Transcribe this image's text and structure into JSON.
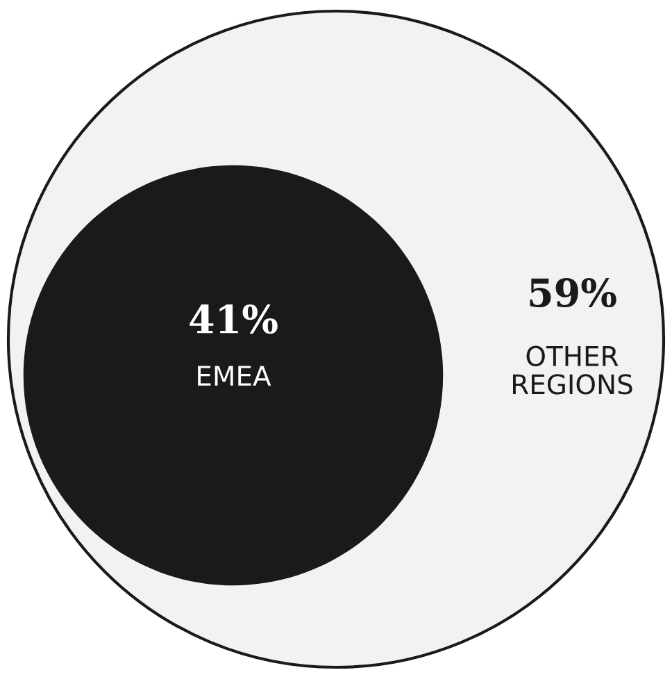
{
  "chart_data": {
    "type": "other",
    "categories": [
      "EMEA",
      "OTHER\nREGIONS"
    ],
    "values": [
      41,
      59
    ],
    "value_labels": [
      "41%",
      "59%"
    ],
    "colors": [
      "#1a1a1a",
      "#f2f2f2"
    ]
  }
}
